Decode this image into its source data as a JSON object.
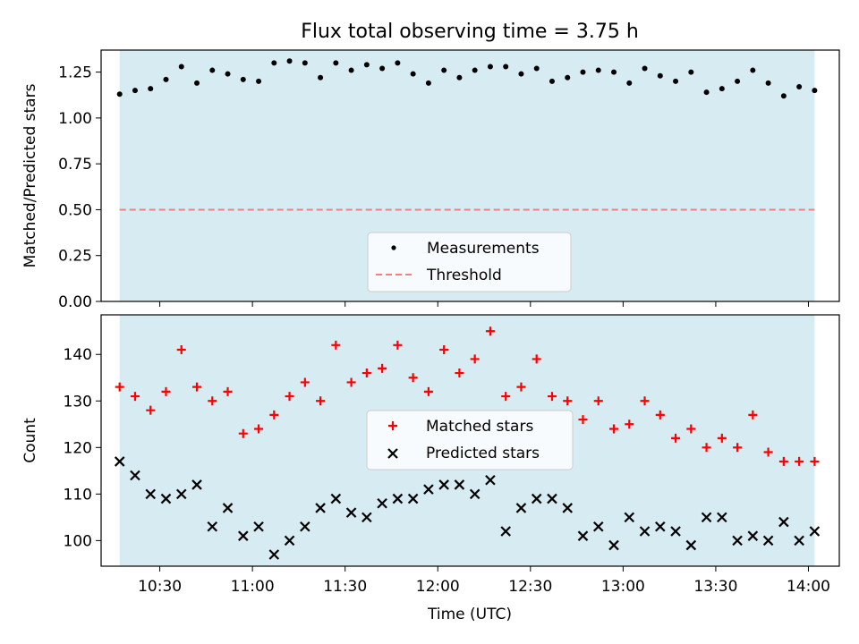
{
  "chart_data": [
    {
      "type": "scatter",
      "title": "Flux total observing time = 3.75 h",
      "xlabel": "",
      "ylabel": "Matched/Predicted stars",
      "ylim": [
        0,
        1.37
      ],
      "yticks": [
        0.0,
        0.25,
        0.5,
        0.75,
        1.0,
        1.25
      ],
      "ytick_labels": [
        "0.00",
        "0.25",
        "0.50",
        "0.75",
        "1.00",
        "1.25"
      ],
      "xticks": [
        "10:30",
        "11:00",
        "11:30",
        "12:00",
        "12:30",
        "13:00",
        "13:30",
        "14:00"
      ],
      "show_xtick_labels": false,
      "xlim": [
        "10:11",
        "14:10"
      ],
      "shaded_span": [
        "10:17",
        "14:02"
      ],
      "shaded_color": "#add8e6",
      "legend_position": "lower center",
      "threshold": 0.5,
      "series": [
        {
          "name": "Measurements",
          "marker": "dot",
          "color": "#000000",
          "x": [
            "10:17",
            "10:22",
            "10:27",
            "10:32",
            "10:37",
            "10:42",
            "10:47",
            "10:52",
            "10:57",
            "11:02",
            "11:07",
            "11:12",
            "11:17",
            "11:22",
            "11:27",
            "11:32",
            "11:37",
            "11:42",
            "11:47",
            "11:52",
            "11:57",
            "12:02",
            "12:07",
            "12:12",
            "12:17",
            "12:22",
            "12:27",
            "12:32",
            "12:37",
            "12:42",
            "12:47",
            "12:52",
            "12:57",
            "13:02",
            "13:07",
            "13:12",
            "13:17",
            "13:22",
            "13:27",
            "13:32",
            "13:37",
            "13:42",
            "13:47",
            "13:52",
            "13:57",
            "14:02"
          ],
          "y": [
            1.13,
            1.15,
            1.16,
            1.21,
            1.28,
            1.19,
            1.26,
            1.24,
            1.21,
            1.2,
            1.3,
            1.31,
            1.3,
            1.22,
            1.3,
            1.26,
            1.29,
            1.27,
            1.3,
            1.24,
            1.19,
            1.26,
            1.22,
            1.26,
            1.28,
            1.28,
            1.24,
            1.27,
            1.2,
            1.22,
            1.25,
            1.26,
            1.25,
            1.19,
            1.27,
            1.23,
            1.2,
            1.25,
            1.14,
            1.16,
            1.2,
            1.26,
            1.19,
            1.12,
            1.17,
            1.15
          ]
        },
        {
          "name": "Threshold",
          "type": "hline",
          "color": "#f08080",
          "style": "dashed",
          "y": 0.5
        }
      ]
    },
    {
      "type": "scatter",
      "title": "",
      "xlabel": "Time (UTC)",
      "ylabel": "Count",
      "ylim": [
        94.5,
        148.5
      ],
      "yticks": [
        100,
        110,
        120,
        130,
        140
      ],
      "ytick_labels": [
        "100",
        "110",
        "120",
        "130",
        "140"
      ],
      "xticks": [
        "10:30",
        "11:00",
        "11:30",
        "12:00",
        "12:30",
        "13:00",
        "13:30",
        "14:00"
      ],
      "show_xtick_labels": true,
      "xlim": [
        "10:11",
        "14:10"
      ],
      "shaded_span": [
        "10:17",
        "14:02"
      ],
      "shaded_color": "#add8e6",
      "legend_position": "center",
      "series": [
        {
          "name": "Matched stars",
          "marker": "plus",
          "color": "#ff0000",
          "x": [
            "10:17",
            "10:22",
            "10:27",
            "10:32",
            "10:37",
            "10:42",
            "10:47",
            "10:52",
            "10:57",
            "11:02",
            "11:07",
            "11:12",
            "11:17",
            "11:22",
            "11:27",
            "11:32",
            "11:37",
            "11:42",
            "11:47",
            "11:52",
            "11:57",
            "12:02",
            "12:07",
            "12:12",
            "12:17",
            "12:22",
            "12:27",
            "12:32",
            "12:37",
            "12:42",
            "12:47",
            "12:52",
            "12:57",
            "13:02",
            "13:07",
            "13:12",
            "13:17",
            "13:22",
            "13:27",
            "13:32",
            "13:37",
            "13:42",
            "13:47",
            "13:52",
            "13:57",
            "14:02"
          ],
          "y": [
            133,
            131,
            128,
            132,
            141,
            133,
            130,
            132,
            123,
            124,
            127,
            131,
            134,
            130,
            142,
            134,
            136,
            137,
            142,
            135,
            132,
            141,
            136,
            139,
            145,
            131,
            133,
            139,
            131,
            130,
            126,
            130,
            124,
            125,
            130,
            127,
            122,
            124,
            120,
            122,
            120,
            127,
            119,
            117,
            117,
            117
          ]
        },
        {
          "name": "Predicted stars",
          "marker": "x",
          "color": "#000000",
          "x": [
            "10:17",
            "10:22",
            "10:27",
            "10:32",
            "10:37",
            "10:42",
            "10:47",
            "10:52",
            "10:57",
            "11:02",
            "11:07",
            "11:12",
            "11:17",
            "11:22",
            "11:27",
            "11:32",
            "11:37",
            "11:42",
            "11:47",
            "11:52",
            "11:57",
            "12:02",
            "12:07",
            "12:12",
            "12:17",
            "12:22",
            "12:27",
            "12:32",
            "12:37",
            "12:42",
            "12:47",
            "12:52",
            "12:57",
            "13:02",
            "13:07",
            "13:12",
            "13:17",
            "13:22",
            "13:27",
            "13:32",
            "13:37",
            "13:42",
            "13:47",
            "13:52",
            "13:57",
            "14:02"
          ],
          "y": [
            117,
            114,
            110,
            109,
            110,
            112,
            103,
            107,
            101,
            103,
            97,
            100,
            103,
            107,
            109,
            106,
            105,
            108,
            109,
            109,
            111,
            112,
            112,
            110,
            113,
            102,
            107,
            109,
            109,
            107,
            101,
            103,
            99,
            105,
            102,
            103,
            102,
            99,
            105,
            105,
            100,
            101,
            100,
            104,
            100,
            102
          ]
        }
      ]
    }
  ]
}
